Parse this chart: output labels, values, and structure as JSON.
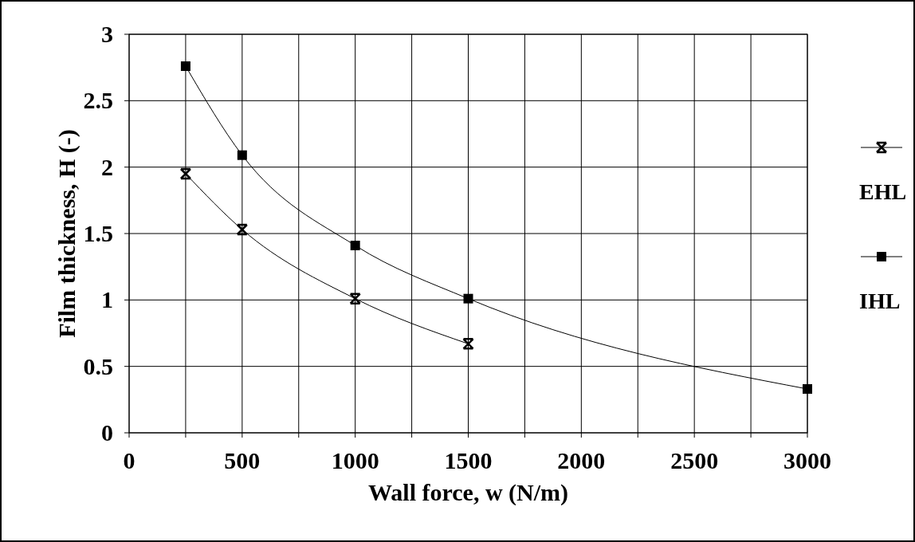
{
  "chart_data": {
    "type": "line",
    "xlabel": "Wall force, w (N/m)",
    "ylabel": "Film thickness, H (-)",
    "xlim": [
      0,
      3000
    ],
    "ylim": [
      0,
      3
    ],
    "xticks": [
      0,
      {
        "value": 250,
        "label": null
      },
      500,
      {
        "value": 750,
        "label": null
      },
      1000,
      {
        "value": 1250,
        "label": null
      },
      1500,
      {
        "value": 1750,
        "label": null
      },
      2000,
      {
        "value": 2250,
        "label": null
      },
      2500,
      {
        "value": 2750,
        "label": null
      },
      3000
    ],
    "yticks": [
      0,
      0.5,
      1,
      1.5,
      2,
      2.5,
      3
    ],
    "grid": true,
    "legend": "right",
    "line_style": "solid",
    "series": [
      {
        "name": "EHL",
        "color": "#000000",
        "marker": "cross",
        "x": [
          250,
          500,
          1000,
          1500
        ],
        "values": [
          1.95,
          1.53,
          1.01,
          0.67
        ]
      },
      {
        "name": "IHL",
        "color": "#000000",
        "marker": "square",
        "x": [
          250,
          500,
          1000,
          1500,
          3000
        ],
        "values": [
          2.76,
          2.09,
          1.41,
          1.01,
          0.33
        ]
      }
    ]
  }
}
